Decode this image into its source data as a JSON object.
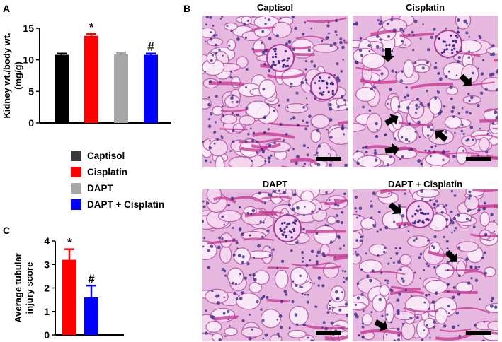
{
  "panels": {
    "a": "A",
    "b": "B",
    "c": "C"
  },
  "chart_data": [
    {
      "type": "bar",
      "categories": [
        "Captisol",
        "Cisplatin",
        "DAPT",
        "DAPT + Cisplatin"
      ],
      "values": [
        10.8,
        13.8,
        10.9,
        10.8
      ],
      "errors": [
        0.2,
        0.3,
        0.2,
        0.2
      ],
      "colors": [
        "#000000",
        "#ff0000",
        "#a6a6a6",
        "#0000ff"
      ],
      "annotations": [
        "",
        "*",
        "",
        "#"
      ],
      "ylabel": "Kidney wt./body wt.\n(mg/g)",
      "xlabel": "",
      "ylim": [
        0,
        15
      ],
      "yticks": [
        0,
        5,
        10,
        15
      ]
    },
    {
      "type": "bar",
      "categories": [
        "Cisplatin",
        "DAPT + Cisplatin"
      ],
      "values": [
        3.2,
        1.6
      ],
      "errors": [
        0.45,
        0.5
      ],
      "colors": [
        "#ff0000",
        "#0000ff"
      ],
      "annotations": [
        "*",
        "#"
      ],
      "ylabel": "Average tubular\ninjury score",
      "xlabel": "",
      "ylim": [
        0,
        4
      ],
      "yticks": [
        0,
        1,
        2,
        3,
        4
      ]
    }
  ],
  "legend": [
    {
      "label": "Captisol",
      "color": "#3a3a3a"
    },
    {
      "label": "Cisplatin",
      "color": "#ff0000"
    },
    {
      "label": "DAPT",
      "color": "#a6a6a6"
    },
    {
      "label": "DAPT + Cisplatin",
      "color": "#0000ff"
    }
  ],
  "micrographs": [
    {
      "title": "Captisol",
      "arrows": 0
    },
    {
      "title": "Cisplatin",
      "arrows": 5
    },
    {
      "title": "DAPT",
      "arrows": 0
    },
    {
      "title": "DAPT + Cisplatin",
      "arrows": 3
    }
  ]
}
